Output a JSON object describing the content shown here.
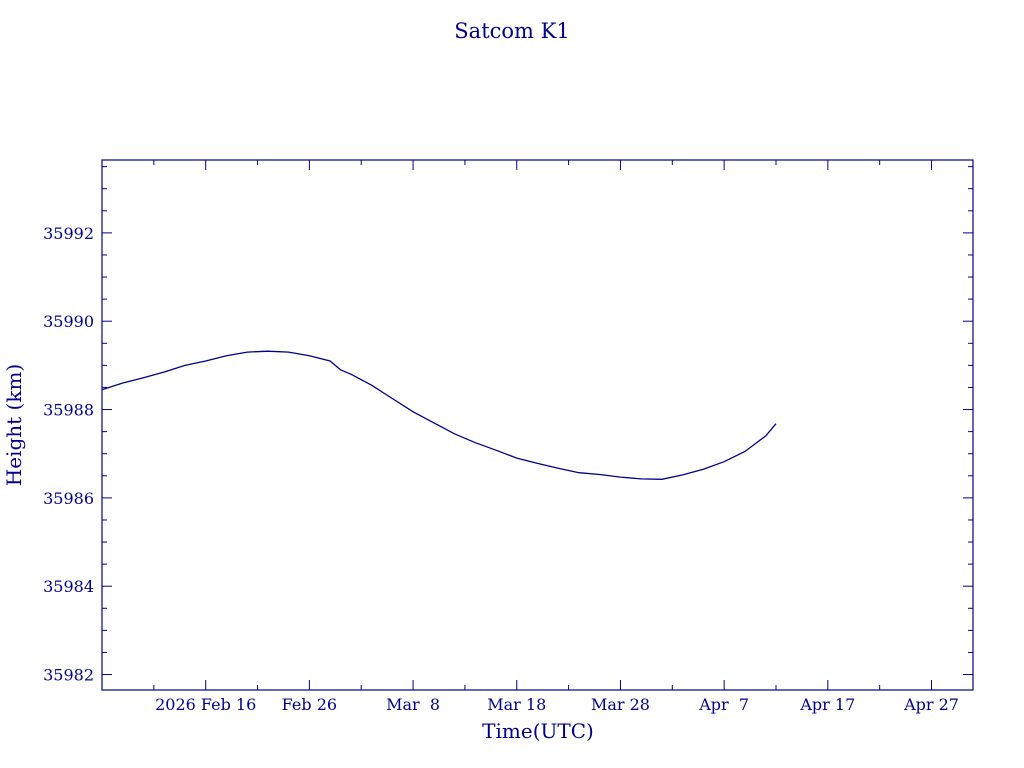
{
  "chart_data": {
    "type": "line",
    "title": "Satcom K1",
    "xlabel": "Time(UTC)",
    "ylabel": "Height (km)",
    "ylim": [
      35981.65,
      35993.65
    ],
    "xlim": [
      "2026-02-06",
      "2026-05-01"
    ],
    "y_ticks": [
      35982,
      35984,
      35986,
      35988,
      35990,
      35992
    ],
    "y_tick_labels": [
      "35982",
      "35984",
      "35986",
      "35988",
      "35990",
      "35992"
    ],
    "x_ticks": [
      "2026-02-16",
      "2026-02-26",
      "2026-03-08",
      "2026-03-18",
      "2026-03-28",
      "2026-04-07",
      "2026-04-17",
      "2026-04-27"
    ],
    "x_tick_labels": [
      "2026 Feb 16",
      "Feb 26",
      "Mar  8",
      "Mar 18",
      "Mar 28",
      "Apr  7",
      "Apr 17",
      "Apr 27"
    ],
    "grid": false,
    "color": "#00008b",
    "series": [
      {
        "x": [
          "2026-02-06",
          "2026-02-08",
          "2026-02-10",
          "2026-02-12",
          "2026-02-14",
          "2026-02-16",
          "2026-02-18",
          "2026-02-20",
          "2026-02-22",
          "2026-02-24",
          "2026-02-26",
          "2026-02-28",
          "2026-03-01",
          "2026-03-02",
          "2026-03-04",
          "2026-03-06",
          "2026-03-08",
          "2026-03-10",
          "2026-03-12",
          "2026-03-14",
          "2026-03-16",
          "2026-03-18",
          "2026-03-20",
          "2026-03-22",
          "2026-03-24",
          "2026-03-26",
          "2026-03-28",
          "2026-03-30",
          "2026-04-01",
          "2026-04-03",
          "2026-04-05",
          "2026-04-07",
          "2026-04-09",
          "2026-04-11",
          "2026-04-12"
        ],
        "y": [
          35988.45,
          35988.6,
          35988.72,
          35988.85,
          35989.0,
          35989.1,
          35989.22,
          35989.3,
          35989.32,
          35989.3,
          35989.22,
          35989.1,
          35988.9,
          35988.8,
          35988.55,
          35988.25,
          35987.95,
          35987.7,
          35987.45,
          35987.25,
          35987.08,
          35986.9,
          35986.78,
          35986.67,
          35986.57,
          35986.53,
          35986.47,
          35986.43,
          35986.42,
          35986.52,
          35986.65,
          35986.82,
          35987.05,
          35987.4,
          35987.68
        ]
      }
    ]
  }
}
